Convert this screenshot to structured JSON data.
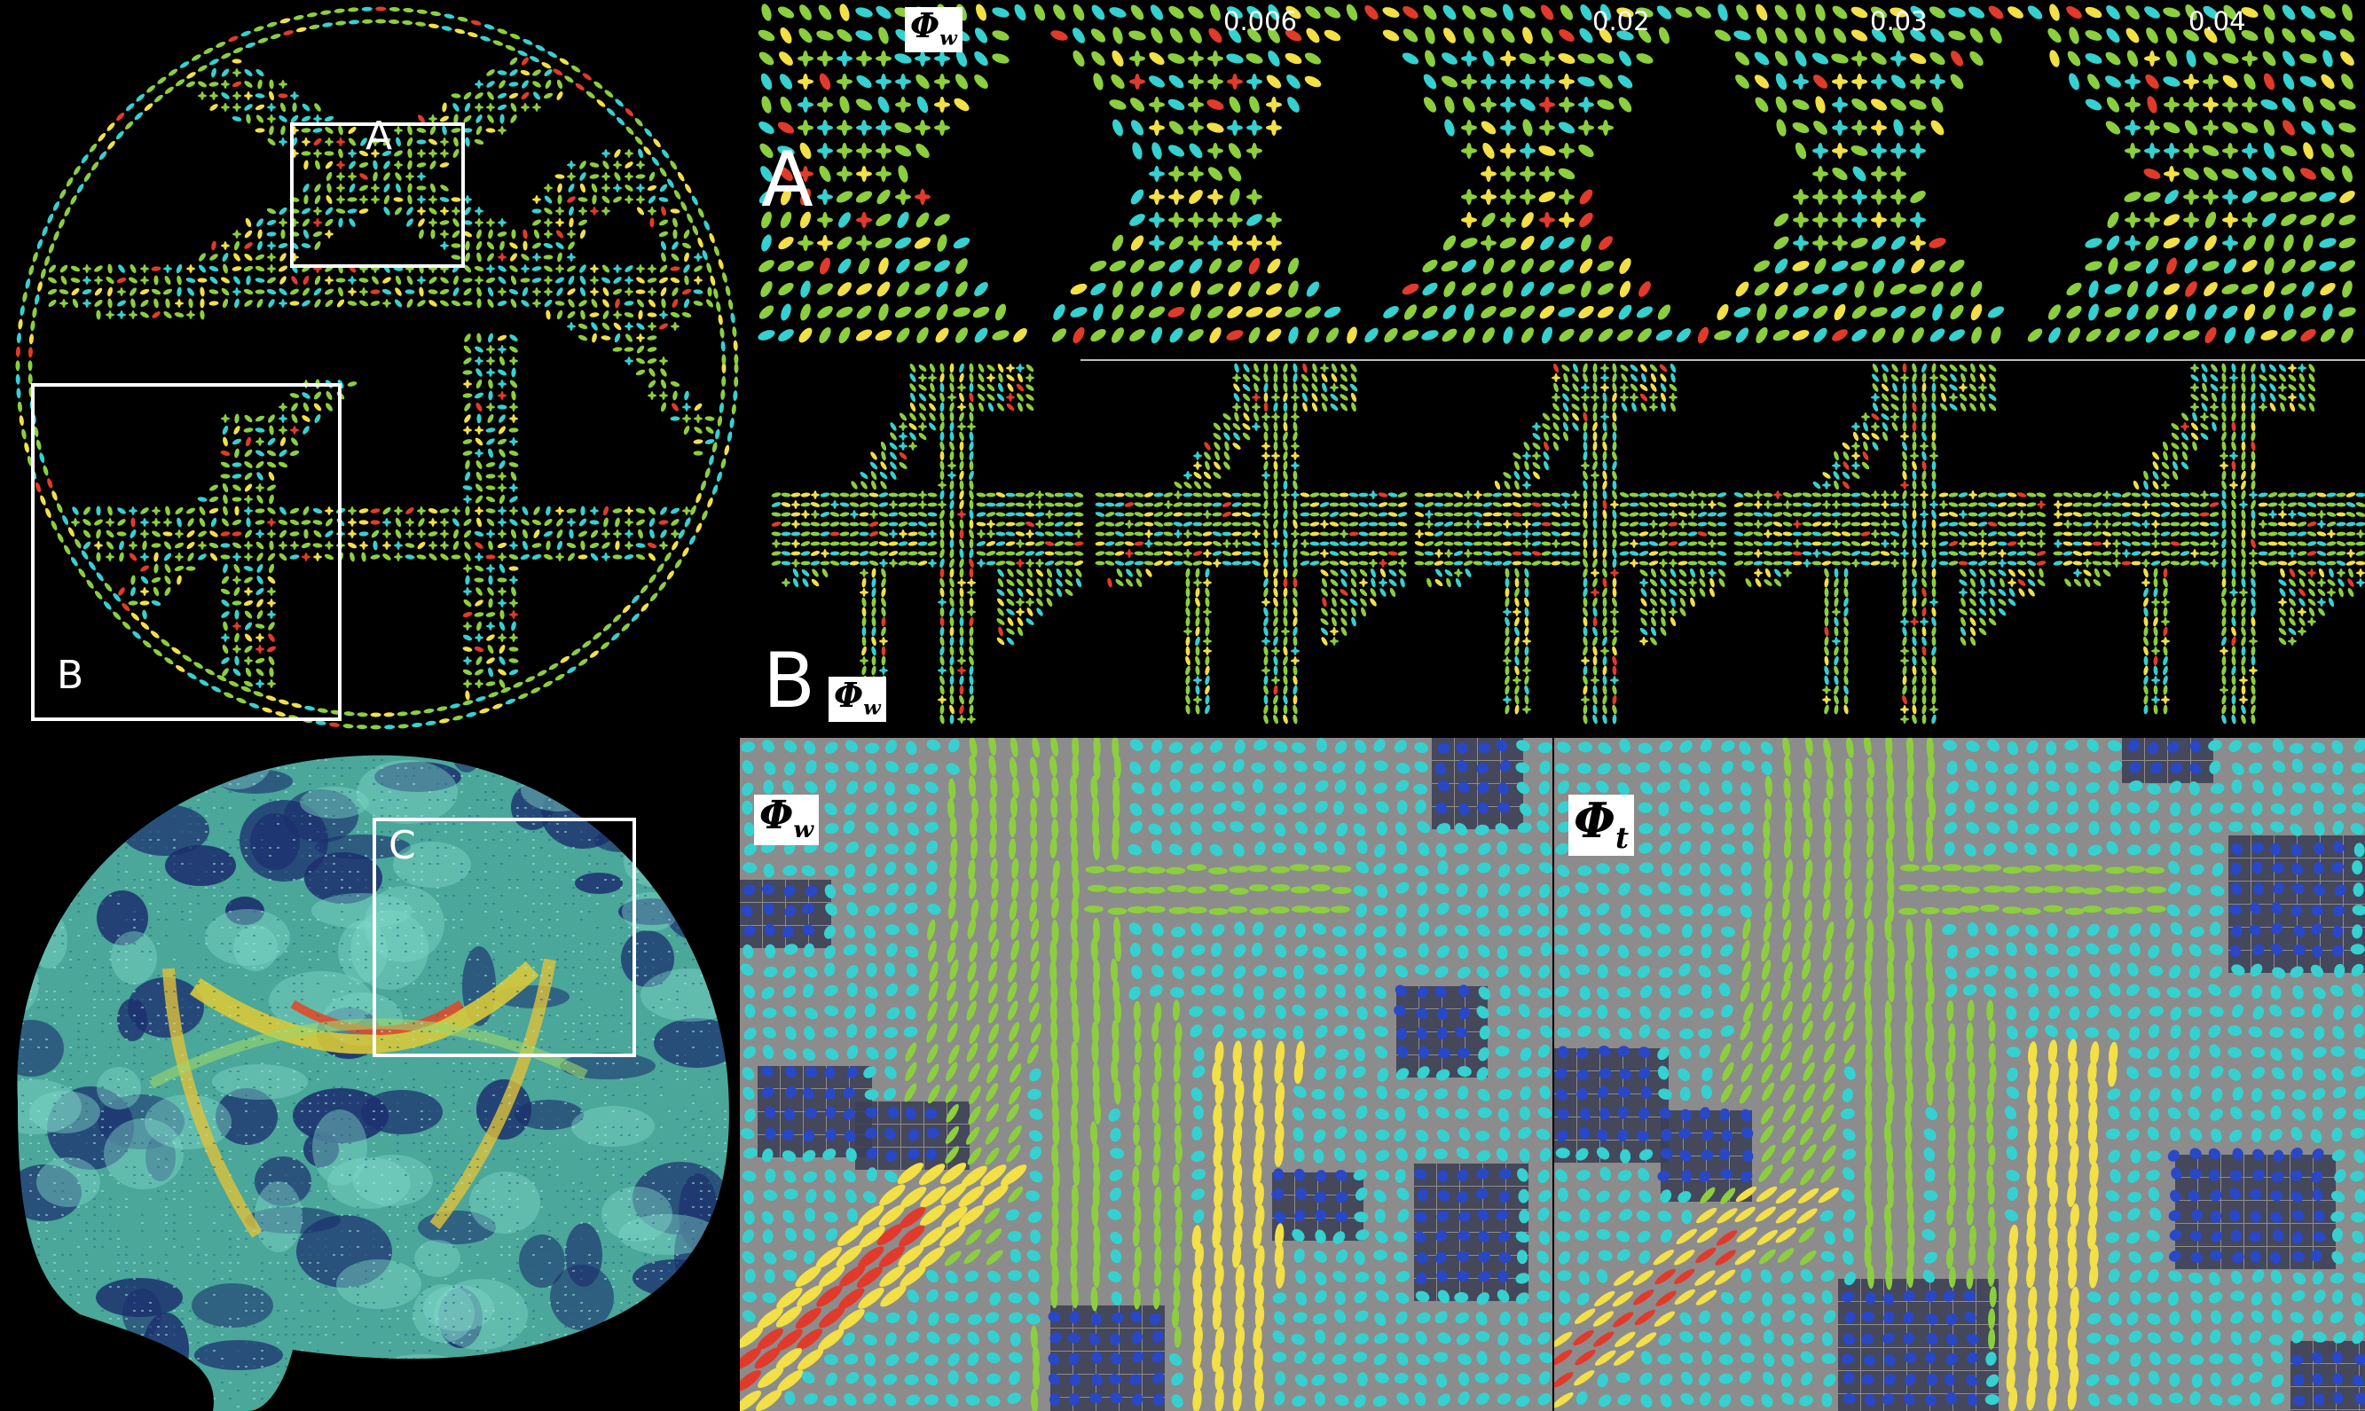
{
  "phantom_overview": {
    "roi_a": "A",
    "roi_b": "B"
  },
  "row_a": {
    "letter": "A",
    "phi_symbol": "Φ",
    "phi_subscript": "w",
    "parameter_values": [
      "0.006",
      "0.02",
      "0.03",
      "0.04"
    ]
  },
  "row_b": {
    "letter": "B",
    "phi_symbol": "Φ",
    "phi_subscript": "w"
  },
  "brain_overview": {
    "roi_c": "C"
  },
  "brain_zoom": {
    "left": {
      "phi_symbol": "Φ",
      "phi_subscript": "w"
    },
    "right": {
      "phi_symbol": "Φ",
      "phi_subscript": "t"
    }
  },
  "colors": {
    "background": "#000000",
    "glyph_green": "#8ccf3e",
    "glyph_cyan": "#35d1d1",
    "glyph_yellow": "#f2e046",
    "glyph_red": "#e23a2a",
    "glyph_blue": "#2848c8",
    "zoom_background": "#8c8c8c",
    "roi_box": "#ffffff"
  }
}
